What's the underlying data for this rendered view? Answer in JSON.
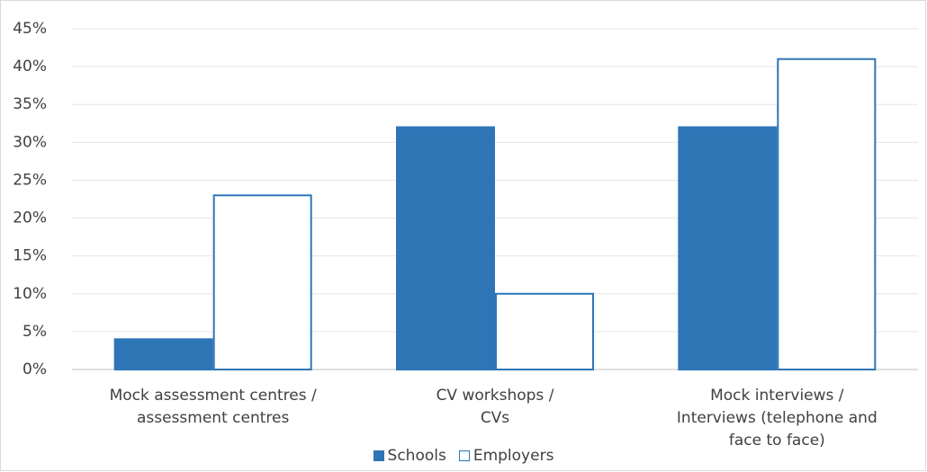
{
  "chart_data": {
    "type": "bar",
    "categories": [
      "Mock assessment centres /\nassessment centres",
      "CV workshops /\nCVs",
      "Mock interviews /\nInterviews (telephone and\nface to face)"
    ],
    "series": [
      {
        "name": "Schools",
        "color": "#2e75b6",
        "fill": "#2e75b6",
        "values": [
          4,
          32,
          32
        ]
      },
      {
        "name": "Employers",
        "color": "#2e75b6",
        "fill": "#ffffff",
        "values": [
          23,
          10,
          41
        ]
      }
    ],
    "ylim": [
      0,
      45
    ],
    "yticks": [
      {
        "value": 0,
        "label": "0%"
      },
      {
        "value": 5,
        "label": "5%"
      },
      {
        "value": 10,
        "label": "10%"
      },
      {
        "value": 15,
        "label": "15%"
      },
      {
        "value": 20,
        "label": "20%"
      },
      {
        "value": 25,
        "label": "25%"
      },
      {
        "value": 30,
        "label": "30%"
      },
      {
        "value": 35,
        "label": "35%"
      },
      {
        "value": 40,
        "label": "40%"
      },
      {
        "value": 45,
        "label": "45%"
      }
    ],
    "grid": true,
    "legend": "bottom"
  }
}
